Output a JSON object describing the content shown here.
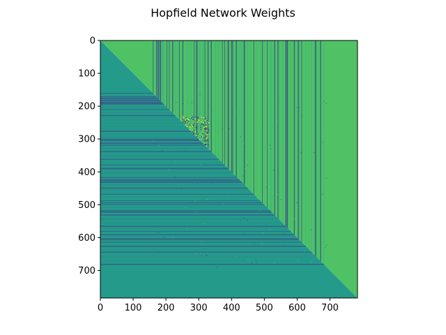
{
  "chart_data": {
    "type": "heatmap",
    "title": "Hopfield Network Weights",
    "xlabel": "",
    "ylabel": "",
    "xlim": [
      0,
      784
    ],
    "ylim": [
      784,
      0
    ],
    "matrix_size": 784,
    "x_ticks": [
      0,
      100,
      200,
      300,
      400,
      500,
      600,
      700
    ],
    "y_ticks": [
      0,
      100,
      200,
      300,
      400,
      500,
      600,
      700
    ],
    "colormap": "viridis",
    "grid": false,
    "structure": {
      "upper_triangle_background": "#4fc266",
      "lower_triangle_background": "#249a8a",
      "active_index_ranges": [
        [
          160,
          690
        ]
      ],
      "strong_weight_block": [
        [
          230,
          330
        ],
        [
          230,
          330
        ]
      ]
    },
    "colors": {
      "upper_light": "#4fc266",
      "upper_mid": "#3bb57a",
      "lower_base": "#249a8a",
      "lower_mid": "#2a8c8c",
      "negative": "#3a528b",
      "strong_negative": "#46307e",
      "positive": "#79d151",
      "strong_positive": "#fde725"
    }
  }
}
